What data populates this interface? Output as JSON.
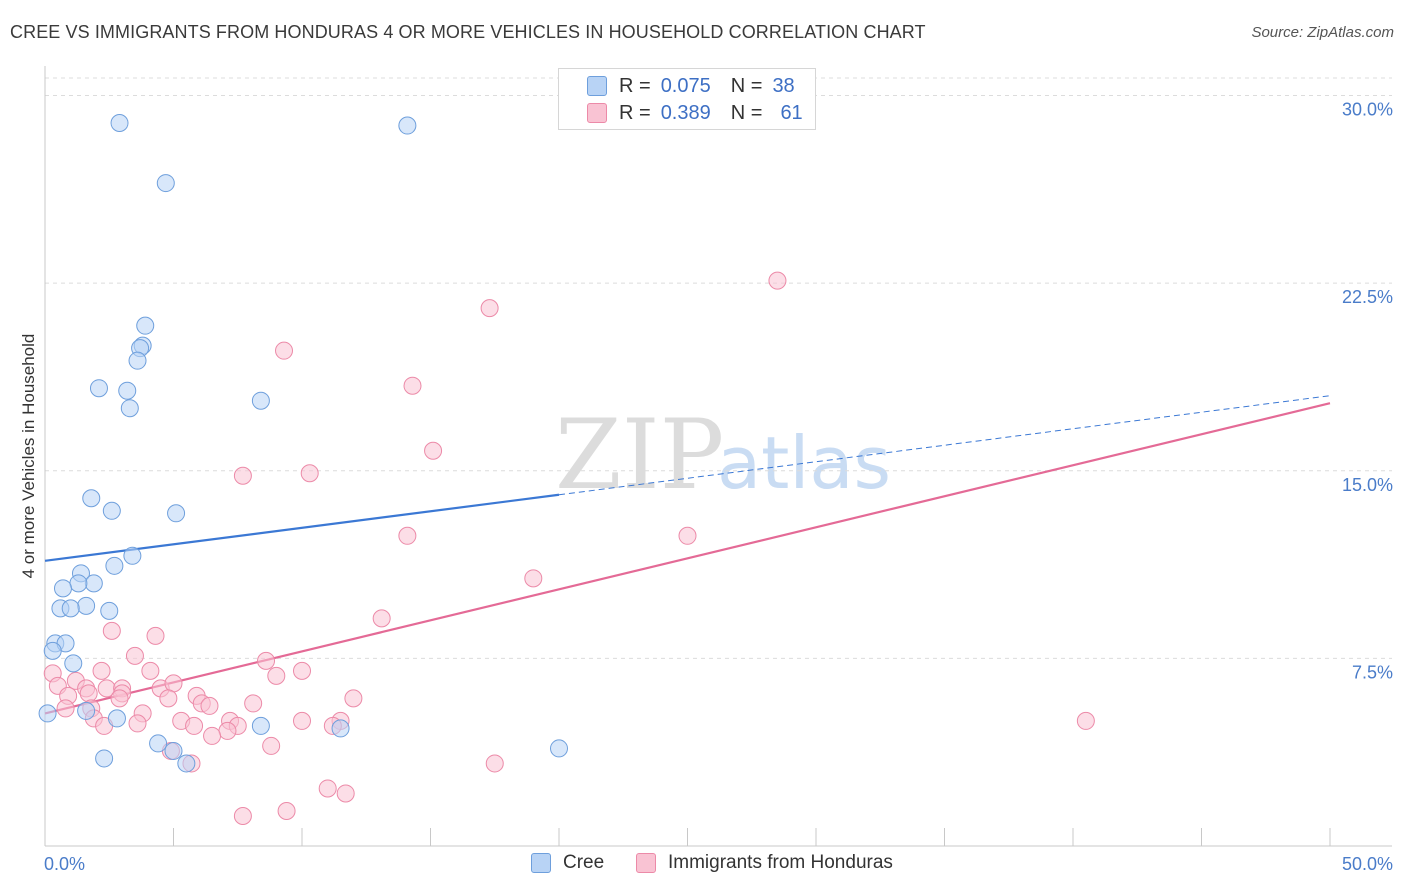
{
  "title": "CREE VS IMMIGRANTS FROM HONDURAS 4 OR MORE VEHICLES IN HOUSEHOLD CORRELATION CHART",
  "source": "Source: ZipAtlas.com",
  "watermark": {
    "zip": "ZIP",
    "atlas": "atlas"
  },
  "legend_top": {
    "rows": [
      {
        "r_label": "R =",
        "r_value": "0.075",
        "n_label": "N =",
        "n_value": "38"
      },
      {
        "r_label": "R =",
        "r_value": "0.389",
        "n_label": "N =",
        "n_value": "61"
      }
    ]
  },
  "legend_bottom": {
    "series1": "Cree",
    "series2": "Immigrants from Honduras"
  },
  "colors": {
    "cree_fill": "#b8d3f5",
    "cree_stroke": "#6e9fdc",
    "cree_line": "#3b78d4",
    "hond_fill": "#f9c3d3",
    "hond_stroke": "#ec8aa8",
    "hond_line": "#e46a96",
    "tick_text": "#4a7cc9",
    "grid": "#dcdcdc"
  },
  "chart_data": {
    "type": "scatter",
    "ylabel": "4 or more Vehicles in Household",
    "x_tick_labels": {
      "min": "0.0%",
      "max": "50.0%"
    },
    "y_tick_labels": [
      "7.5%",
      "15.0%",
      "22.5%",
      "30.0%"
    ],
    "xlim": [
      0,
      50
    ],
    "ylim": [
      0,
      30.7
    ],
    "y_ticks": [
      7.5,
      15.0,
      22.5,
      30.0
    ],
    "grid": true,
    "series": [
      {
        "name": "Cree",
        "r": 0.075,
        "n": 38,
        "trend": {
          "x0": 0,
          "y0": 11.4,
          "x_solid_end": 20,
          "x1": 50,
          "y1": 18.0
        },
        "points": [
          [
            2.9,
            28.9
          ],
          [
            14.1,
            28.8
          ],
          [
            4.7,
            26.5
          ],
          [
            3.9,
            20.8
          ],
          [
            3.8,
            20.0
          ],
          [
            3.7,
            19.9
          ],
          [
            3.6,
            19.4
          ],
          [
            2.1,
            18.3
          ],
          [
            3.2,
            18.2
          ],
          [
            8.4,
            17.8
          ],
          [
            3.3,
            17.5
          ],
          [
            1.8,
            13.9
          ],
          [
            2.6,
            13.4
          ],
          [
            5.1,
            13.3
          ],
          [
            3.4,
            11.6
          ],
          [
            2.7,
            11.2
          ],
          [
            1.4,
            10.9
          ],
          [
            1.9,
            10.5
          ],
          [
            1.3,
            10.5
          ],
          [
            0.7,
            10.3
          ],
          [
            0.6,
            9.5
          ],
          [
            1.6,
            9.6
          ],
          [
            1.0,
            9.5
          ],
          [
            2.5,
            9.4
          ],
          [
            0.4,
            8.1
          ],
          [
            0.8,
            8.1
          ],
          [
            0.3,
            7.8
          ],
          [
            1.1,
            7.3
          ],
          [
            0.1,
            5.3
          ],
          [
            1.6,
            5.4
          ],
          [
            2.8,
            5.1
          ],
          [
            8.4,
            4.8
          ],
          [
            11.5,
            4.7
          ],
          [
            4.4,
            4.1
          ],
          [
            5.0,
            3.8
          ],
          [
            5.5,
            3.3
          ],
          [
            2.3,
            3.5
          ],
          [
            20.0,
            3.9
          ]
        ]
      },
      {
        "name": "Immigrants from Honduras",
        "r": 0.389,
        "n": 61,
        "trend": {
          "x0": 0,
          "y0": 5.3,
          "x1": 50,
          "y1": 17.7
        },
        "points": [
          [
            28.5,
            22.6
          ],
          [
            17.3,
            21.5
          ],
          [
            9.3,
            19.8
          ],
          [
            14.3,
            18.4
          ],
          [
            15.1,
            15.8
          ],
          [
            7.7,
            14.8
          ],
          [
            10.3,
            14.9
          ],
          [
            14.1,
            12.4
          ],
          [
            25.0,
            12.4
          ],
          [
            19.0,
            10.7
          ],
          [
            13.1,
            9.1
          ],
          [
            2.6,
            8.6
          ],
          [
            4.3,
            8.4
          ],
          [
            3.5,
            7.6
          ],
          [
            8.6,
            7.4
          ],
          [
            2.2,
            7.0
          ],
          [
            4.1,
            7.0
          ],
          [
            10.0,
            7.0
          ],
          [
            9.0,
            6.8
          ],
          [
            0.3,
            6.9
          ],
          [
            0.5,
            6.4
          ],
          [
            1.2,
            6.6
          ],
          [
            1.6,
            6.3
          ],
          [
            2.4,
            6.3
          ],
          [
            3.0,
            6.3
          ],
          [
            4.5,
            6.3
          ],
          [
            5.0,
            6.5
          ],
          [
            0.9,
            6.0
          ],
          [
            1.7,
            6.1
          ],
          [
            3.0,
            6.1
          ],
          [
            2.9,
            5.9
          ],
          [
            4.8,
            5.9
          ],
          [
            5.9,
            6.0
          ],
          [
            6.1,
            5.7
          ],
          [
            8.1,
            5.7
          ],
          [
            12.0,
            5.9
          ],
          [
            6.4,
            5.6
          ],
          [
            0.8,
            5.5
          ],
          [
            1.8,
            5.5
          ],
          [
            3.8,
            5.3
          ],
          [
            1.9,
            5.1
          ],
          [
            5.3,
            5.0
          ],
          [
            7.2,
            5.0
          ],
          [
            10.0,
            5.0
          ],
          [
            11.5,
            5.0
          ],
          [
            3.6,
            4.9
          ],
          [
            2.3,
            4.8
          ],
          [
            5.8,
            4.8
          ],
          [
            7.5,
            4.8
          ],
          [
            11.2,
            4.8
          ],
          [
            7.1,
            4.6
          ],
          [
            6.5,
            4.4
          ],
          [
            8.8,
            4.0
          ],
          [
            4.9,
            3.8
          ],
          [
            5.7,
            3.3
          ],
          [
            17.5,
            3.3
          ],
          [
            11.0,
            2.3
          ],
          [
            11.7,
            2.1
          ],
          [
            9.4,
            1.4
          ],
          [
            7.7,
            1.2
          ],
          [
            40.5,
            5.0
          ]
        ]
      }
    ]
  }
}
